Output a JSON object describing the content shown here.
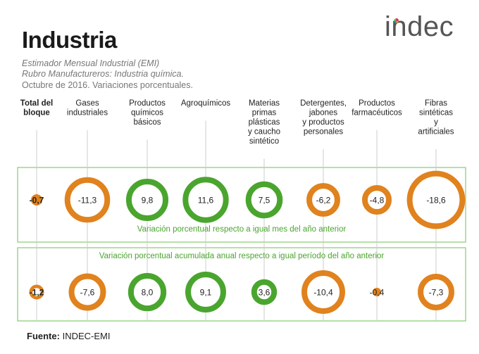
{
  "header": {
    "title": "Industria",
    "subtitle_1": "Estimador Mensual Industrial (EMI)",
    "subtitle_2": "Rubro Manufactureros: Industria química.",
    "subtitle_3": "Octubre de 2016. Variaciones porcentuales."
  },
  "logo": {
    "text": "indec"
  },
  "footer": {
    "source_label": "Fuente:",
    "source_value": "INDEC-EMI"
  },
  "colors": {
    "positive": "#4aa52e",
    "negative": "#e0821e",
    "frame": "#8fd07a",
    "guide": "#cccccc"
  },
  "chart_data": {
    "type": "bubble",
    "title": "Industria",
    "categories": [
      [
        "Total del",
        "bloque"
      ],
      [
        "Gases",
        "industriales"
      ],
      [
        "Productos",
        "químicos",
        "básicos"
      ],
      [
        "Agroquímicos"
      ],
      [
        "Materias",
        "primas",
        "plásticas",
        "y caucho",
        "sintético"
      ],
      [
        "Detergentes,",
        "jabones",
        "y productos",
        "personales"
      ],
      [
        "Productos",
        "farmacéuticos"
      ],
      [
        "Fibras",
        "sintéticas",
        "y",
        "artificiales"
      ]
    ],
    "series": [
      {
        "name": "Variación porcentual respecto a igual mes del año anterior",
        "values": [
          -0.7,
          -11.3,
          9.8,
          11.6,
          7.5,
          -6.2,
          -4.8,
          -18.6
        ],
        "labels": [
          "-0,7",
          "-11,3",
          "9,8",
          "11,6",
          "7,5",
          "-6,2",
          "-4,8",
          "-18,6"
        ]
      },
      {
        "name": "Variación porcentual acumulada anual respecto a igual período del año anterior",
        "values": [
          -1.2,
          -7.6,
          8.0,
          9.1,
          3.6,
          -10.4,
          -0.4,
          -7.3
        ],
        "labels": [
          "-1,2",
          "-7,6",
          "8,0",
          "9,1",
          "3,6",
          "-10,4",
          "-0,4",
          "-7,3"
        ]
      }
    ]
  }
}
